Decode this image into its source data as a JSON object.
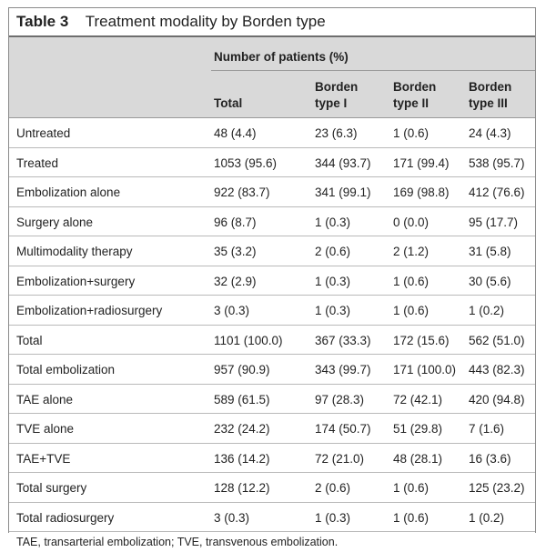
{
  "table": {
    "number": "Table 3",
    "caption": "Treatment modality by Borden type",
    "group_header": "Number of patients (%)",
    "columns": [
      {
        "line1": "",
        "line2": "Total"
      },
      {
        "line1": "Borden",
        "line2": "type I"
      },
      {
        "line1": "Borden",
        "line2": "type II"
      },
      {
        "line1": "Borden",
        "line2": "type III"
      }
    ],
    "rows": [
      {
        "label": "Untreated",
        "values": [
          "48 (4.4)",
          "23 (6.3)",
          "1 (0.6)",
          "24 (4.3)"
        ]
      },
      {
        "label": "Treated",
        "values": [
          "1053 (95.6)",
          "344 (93.7)",
          "171 (99.4)",
          "538 (95.7)"
        ]
      },
      {
        "label": "Embolization alone",
        "values": [
          "922 (83.7)",
          "341 (99.1)",
          "169 (98.8)",
          "412 (76.6)"
        ]
      },
      {
        "label": "Surgery alone",
        "values": [
          "96 (8.7)",
          "1 (0.3)",
          "0 (0.0)",
          "95 (17.7)"
        ]
      },
      {
        "label": "Multimodality therapy",
        "values": [
          "35 (3.2)",
          "2 (0.6)",
          "2 (1.2)",
          "31 (5.8)"
        ]
      },
      {
        "label": "Embolization+surgery",
        "values": [
          "32 (2.9)",
          "1 (0.3)",
          "1 (0.6)",
          "30 (5.6)"
        ]
      },
      {
        "label": "Embolization+radiosurgery",
        "values": [
          "3 (0.3)",
          "1 (0.3)",
          "1 (0.6)",
          "1 (0.2)"
        ]
      },
      {
        "label": "Total",
        "values": [
          "1101 (100.0)",
          "367 (33.3)",
          "172 (15.6)",
          "562 (51.0)"
        ]
      },
      {
        "label": "Total embolization",
        "values": [
          "957 (90.9)",
          "343 (99.7)",
          "171 (100.0)",
          "443 (82.3)"
        ]
      },
      {
        "label": "TAE alone",
        "values": [
          "589 (61.5)",
          "97 (28.3)",
          "72 (42.1)",
          "420 (94.8)"
        ]
      },
      {
        "label": "TVE alone",
        "values": [
          "232 (24.2)",
          "174 (50.7)",
          "51 (29.8)",
          "7 (1.6)"
        ]
      },
      {
        "label": "TAE+TVE",
        "values": [
          "136 (14.2)",
          "72 (21.0)",
          "48 (28.1)",
          "16 (3.6)"
        ]
      },
      {
        "label": "Total surgery",
        "values": [
          "128 (12.2)",
          "2 (0.6)",
          "1 (0.6)",
          "125 (23.2)"
        ]
      },
      {
        "label": "Total radiosurgery",
        "values": [
          "3 (0.3)",
          "1 (0.3)",
          "1 (0.6)",
          "1 (0.2)"
        ]
      }
    ],
    "footnote": "TAE, transarterial embolization; TVE, transvenous embolization."
  }
}
